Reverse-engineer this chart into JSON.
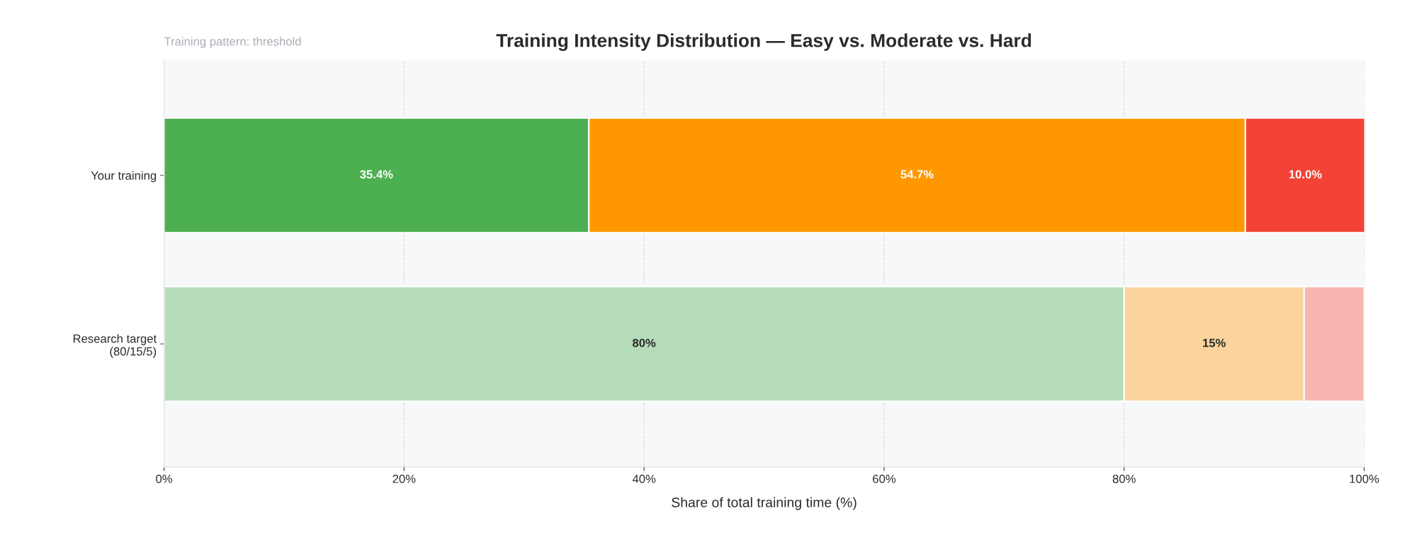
{
  "chart_data": {
    "type": "bar",
    "orientation": "horizontal",
    "stacked": true,
    "title": "Training Intensity Distribution — Easy vs. Moderate vs. Hard",
    "xlabel": "Share of total training time (%)",
    "annotations": [
      "Training pattern: threshold"
    ],
    "categories": [
      "Your training",
      "Research target\n(80/15/5)"
    ],
    "series": [
      {
        "colors": [
          "#4caf50",
          "#b7dcb9"
        ],
        "values": [
          35.4,
          80
        ],
        "value_labels": [
          "35.4%",
          "80%"
        ]
      },
      {
        "colors": [
          "#ff9800",
          "#fad49c"
        ],
        "values": [
          54.7,
          15
        ],
        "value_labels": [
          "54.7%",
          "15%"
        ]
      },
      {
        "colors": [
          "#f44336",
          "#f7b5b0"
        ],
        "values": [
          10.0,
          5
        ],
        "value_labels": [
          "10.0%",
          null
        ]
      }
    ],
    "xlim": [
      0,
      100
    ],
    "xticks": [
      {
        "value": 0,
        "label": "0%"
      },
      {
        "value": 20,
        "label": "20%"
      },
      {
        "value": 40,
        "label": "40%"
      },
      {
        "value": 60,
        "label": "60%"
      },
      {
        "value": 80,
        "label": "80%"
      },
      {
        "value": 100,
        "label": "100%"
      }
    ],
    "grid": "x",
    "legend": false
  }
}
